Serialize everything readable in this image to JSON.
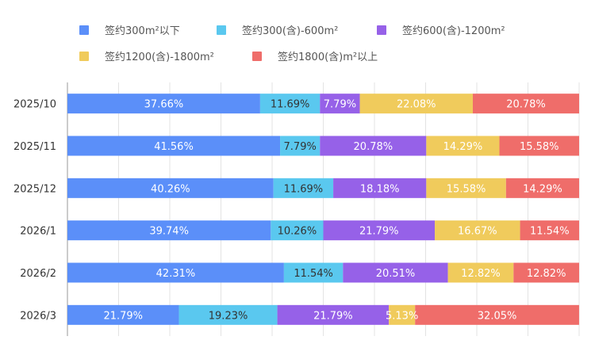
{
  "chart_data": {
    "type": "bar",
    "orientation": "horizontal",
    "stacked": true,
    "normalized": true,
    "title": "",
    "xlabel": "",
    "ylabel": "",
    "xlim": [
      0,
      100
    ],
    "grid": true,
    "legend_position": "top",
    "categories": [
      "2025/10",
      "2025/11",
      "2025/12",
      "2026/1",
      "2026/2",
      "2026/3"
    ],
    "series": [
      {
        "name": "签约300m²以下",
        "color": "#5b8ff9",
        "label_color": "#ffffff",
        "values": [
          37.66,
          41.56,
          40.26,
          39.74,
          42.31,
          21.79
        ],
        "labels": [
          "37.66%",
          "41.56%",
          "40.26%",
          "39.74%",
          "42.31%",
          "21.79%"
        ]
      },
      {
        "name": "签约300(含)-600m²",
        "color": "#5ac8ef",
        "label_color": "#333333",
        "values": [
          11.69,
          7.79,
          11.69,
          10.26,
          11.54,
          19.23
        ],
        "labels": [
          "11.69%",
          "7.79%",
          "11.69%",
          "10.26%",
          "11.54%",
          "19.23%"
        ]
      },
      {
        "name": "签约600(含)-1200m²",
        "color": "#9661e8",
        "label_color": "#ffffff",
        "values": [
          7.79,
          20.78,
          18.18,
          21.79,
          20.51,
          21.79
        ],
        "labels": [
          "7.79%",
          "20.78%",
          "18.18%",
          "21.79%",
          "20.51%",
          "21.79%"
        ]
      },
      {
        "name": "签约1200(含)-1800m²",
        "color": "#f0cb5c",
        "label_color": "#ffffff",
        "values": [
          22.08,
          14.29,
          15.58,
          16.67,
          12.82,
          5.13
        ],
        "labels": [
          "22.08%",
          "14.29%",
          "15.58%",
          "16.67%",
          "12.82%",
          "5.13%"
        ]
      },
      {
        "name": "签约1800(含)m²以上",
        "color": "#ef6d6a",
        "label_color": "#ffffff",
        "values": [
          20.78,
          15.58,
          14.29,
          11.54,
          12.82,
          32.05
        ],
        "labels": [
          "20.78%",
          "15.58%",
          "14.29%",
          "11.54%",
          "12.82%",
          "32.05%"
        ]
      }
    ]
  }
}
